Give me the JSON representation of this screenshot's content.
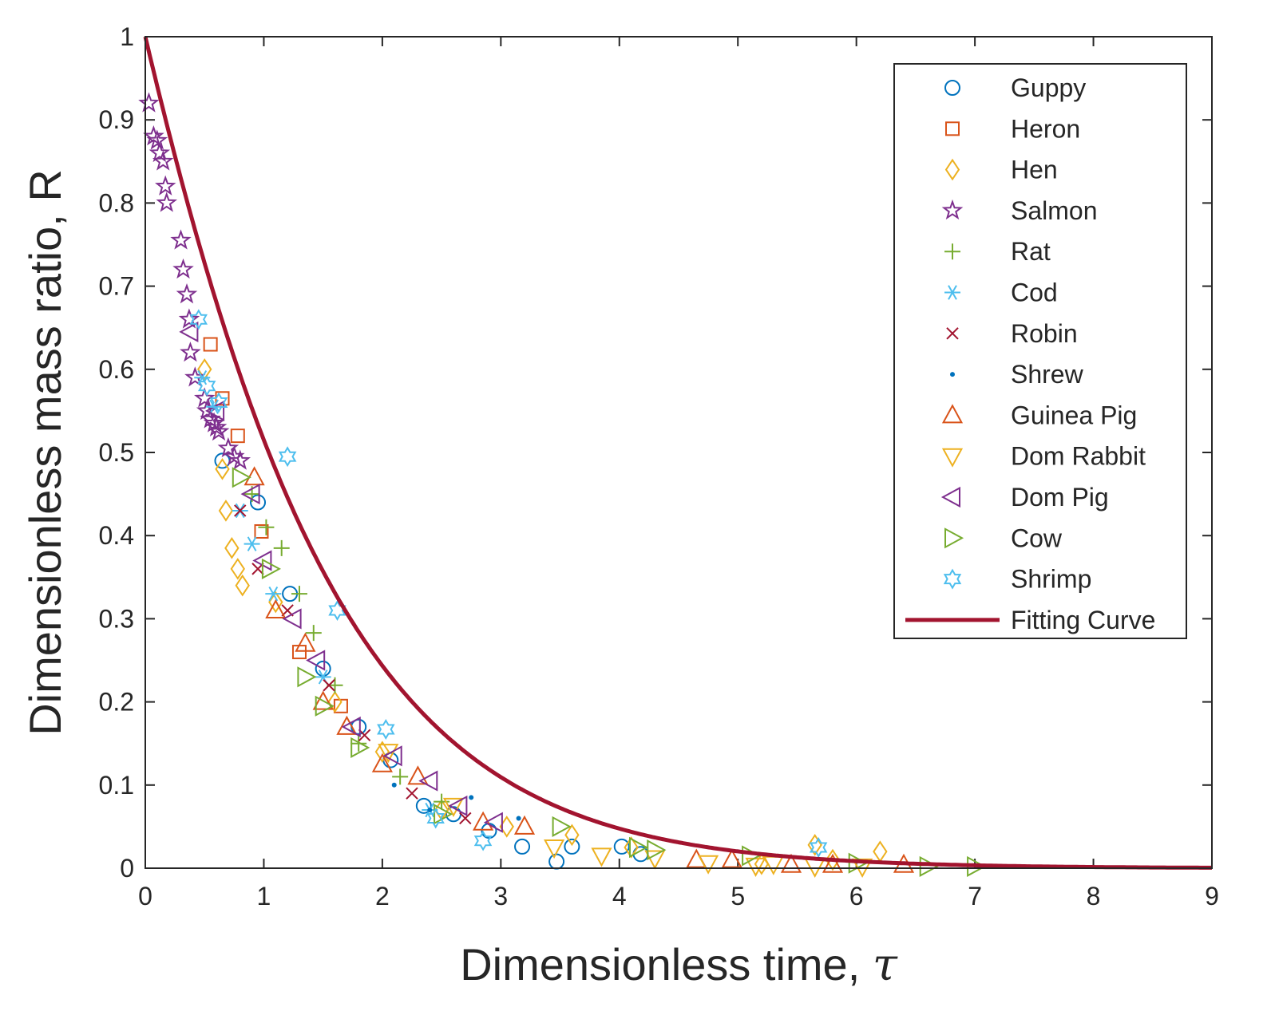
{
  "chart_data": {
    "type": "scatter",
    "title": "",
    "xlabel": "Dimensionless time, ",
    "xlabel_symbol": "τ",
    "ylabel": "Dimensionless mass ratio, R",
    "xlim": [
      0,
      9
    ],
    "ylim": [
      0,
      1
    ],
    "x_ticks": [
      0,
      1,
      2,
      3,
      4,
      5,
      6,
      7,
      8,
      9
    ],
    "y_ticks": [
      0,
      0.1,
      0.2,
      0.3,
      0.4,
      0.5,
      0.6,
      0.7,
      0.8,
      0.9,
      1
    ],
    "y_tick_labels": [
      "0",
      "0.1",
      "0.2",
      "0.3",
      "0.4",
      "0.5",
      "0.6",
      "0.7",
      "0.8",
      "0.9",
      "1"
    ],
    "x_tick_labels": [
      "0",
      "1",
      "2",
      "3",
      "4",
      "5",
      "6",
      "7",
      "8",
      "9"
    ],
    "grid": false,
    "legend_position": "top-right",
    "series": [
      {
        "name": "Guppy",
        "marker": "circle",
        "color": "#0072BD",
        "points": [
          [
            0.65,
            0.49
          ],
          [
            0.95,
            0.44
          ],
          [
            1.22,
            0.33
          ],
          [
            1.5,
            0.24
          ],
          [
            1.8,
            0.17
          ],
          [
            2.07,
            0.13
          ],
          [
            2.35,
            0.075
          ],
          [
            2.6,
            0.065
          ],
          [
            2.9,
            0.045
          ],
          [
            3.18,
            0.026
          ],
          [
            3.47,
            0.008
          ],
          [
            3.6,
            0.026
          ],
          [
            4.02,
            0.026
          ],
          [
            4.18,
            0.017
          ]
        ]
      },
      {
        "name": "Heron",
        "marker": "square",
        "color": "#D95319",
        "points": [
          [
            0.55,
            0.63
          ],
          [
            0.65,
            0.565
          ],
          [
            0.78,
            0.52
          ],
          [
            0.98,
            0.405
          ],
          [
            1.3,
            0.26
          ],
          [
            1.65,
            0.195
          ]
        ]
      },
      {
        "name": "Hen",
        "marker": "diamond",
        "color": "#EDB120",
        "points": [
          [
            0.5,
            0.6
          ],
          [
            0.65,
            0.48
          ],
          [
            0.68,
            0.43
          ],
          [
            0.73,
            0.385
          ],
          [
            0.78,
            0.36
          ],
          [
            0.82,
            0.34
          ],
          [
            1.1,
            0.32
          ],
          [
            1.6,
            0.2
          ],
          [
            2.0,
            0.14
          ],
          [
            2.5,
            0.07
          ],
          [
            3.05,
            0.05
          ],
          [
            3.6,
            0.04
          ],
          [
            4.1,
            0.025
          ],
          [
            5.2,
            0.005
          ],
          [
            5.65,
            0.028
          ],
          [
            5.8,
            0.01
          ],
          [
            6.2,
            0.02
          ]
        ]
      },
      {
        "name": "Salmon",
        "marker": "pentagram",
        "color": "#7E2F8E",
        "points": [
          [
            0.03,
            0.92
          ],
          [
            0.07,
            0.88
          ],
          [
            0.1,
            0.875
          ],
          [
            0.12,
            0.86
          ],
          [
            0.15,
            0.85
          ],
          [
            0.17,
            0.82
          ],
          [
            0.18,
            0.8
          ],
          [
            0.3,
            0.755
          ],
          [
            0.32,
            0.72
          ],
          [
            0.35,
            0.69
          ],
          [
            0.37,
            0.66
          ],
          [
            0.38,
            0.62
          ],
          [
            0.42,
            0.59
          ],
          [
            0.5,
            0.565
          ],
          [
            0.52,
            0.55
          ],
          [
            0.55,
            0.54
          ],
          [
            0.58,
            0.535
          ],
          [
            0.6,
            0.53
          ],
          [
            0.62,
            0.525
          ],
          [
            0.7,
            0.505
          ],
          [
            0.75,
            0.495
          ],
          [
            0.8,
            0.49
          ]
        ]
      },
      {
        "name": "Rat",
        "marker": "plus",
        "color": "#77AC30",
        "points": [
          [
            0.9,
            0.45
          ],
          [
            1.02,
            0.41
          ],
          [
            1.15,
            0.385
          ],
          [
            1.3,
            0.33
          ],
          [
            1.42,
            0.283
          ],
          [
            1.6,
            0.22
          ],
          [
            1.8,
            0.15
          ],
          [
            2.15,
            0.11
          ],
          [
            2.5,
            0.08
          ]
        ]
      },
      {
        "name": "Cod",
        "marker": "asterisk",
        "color": "#4DBEEE",
        "points": [
          [
            0.48,
            0.59
          ],
          [
            0.58,
            0.555
          ],
          [
            0.8,
            0.43
          ],
          [
            0.9,
            0.39
          ],
          [
            1.08,
            0.33
          ],
          [
            1.5,
            0.23
          ],
          [
            2.4,
            0.07
          ]
        ]
      },
      {
        "name": "Robin",
        "marker": "x",
        "color": "#A2142F",
        "points": [
          [
            0.8,
            0.43
          ],
          [
            0.95,
            0.36
          ],
          [
            1.2,
            0.31
          ],
          [
            1.55,
            0.22
          ],
          [
            1.85,
            0.16
          ],
          [
            2.25,
            0.09
          ],
          [
            2.7,
            0.06
          ]
        ]
      },
      {
        "name": "Shrew",
        "marker": "point",
        "color": "#0072BD",
        "points": [
          [
            2.1,
            0.1
          ],
          [
            2.4,
            0.07
          ],
          [
            2.75,
            0.085
          ],
          [
            3.15,
            0.06
          ]
        ]
      },
      {
        "name": "Guinea Pig",
        "marker": "triangle-up",
        "color": "#D95319",
        "points": [
          [
            0.92,
            0.47
          ],
          [
            1.1,
            0.31
          ],
          [
            1.35,
            0.27
          ],
          [
            1.5,
            0.2
          ],
          [
            1.7,
            0.17
          ],
          [
            2.0,
            0.125
          ],
          [
            2.3,
            0.11
          ],
          [
            2.85,
            0.055
          ],
          [
            3.2,
            0.05
          ],
          [
            4.65,
            0.01
          ],
          [
            4.95,
            0.01
          ],
          [
            5.45,
            0.004
          ],
          [
            5.8,
            0.004
          ],
          [
            6.4,
            0.004
          ]
        ]
      },
      {
        "name": "Dom Rabbit",
        "marker": "triangle-down",
        "color": "#EDB120",
        "points": [
          [
            2.05,
            0.14
          ],
          [
            2.6,
            0.075
          ],
          [
            3.45,
            0.025
          ],
          [
            3.85,
            0.015
          ],
          [
            4.3,
            0.012
          ],
          [
            4.75,
            0.006
          ],
          [
            5.15,
            0.003
          ],
          [
            5.3,
            0.005
          ],
          [
            5.65,
            0.002
          ],
          [
            6.05,
            0.002
          ]
        ]
      },
      {
        "name": "Dom Pig",
        "marker": "triangle-left",
        "color": "#7E2F8E",
        "points": [
          [
            0.38,
            0.645
          ],
          [
            0.6,
            0.55
          ],
          [
            0.9,
            0.45
          ],
          [
            1.0,
            0.37
          ],
          [
            1.25,
            0.3
          ],
          [
            1.45,
            0.25
          ],
          [
            1.75,
            0.17
          ],
          [
            2.1,
            0.135
          ],
          [
            2.4,
            0.105
          ],
          [
            2.65,
            0.075
          ],
          [
            2.95,
            0.055
          ]
        ]
      },
      {
        "name": "Cow",
        "marker": "triangle-right",
        "color": "#77AC30",
        "points": [
          [
            0.8,
            0.47
          ],
          [
            1.05,
            0.36
          ],
          [
            1.35,
            0.23
          ],
          [
            1.5,
            0.195
          ],
          [
            1.8,
            0.145
          ],
          [
            2.5,
            0.065
          ],
          [
            3.5,
            0.05
          ],
          [
            4.15,
            0.025
          ],
          [
            4.3,
            0.022
          ],
          [
            5.1,
            0.015
          ],
          [
            6.0,
            0.006
          ],
          [
            6.6,
            0.002
          ],
          [
            7.0,
            0.002
          ]
        ]
      },
      {
        "name": "Shrimp",
        "marker": "hexagram",
        "color": "#4DBEEE",
        "points": [
          [
            0.45,
            0.66
          ],
          [
            0.52,
            0.58
          ],
          [
            0.62,
            0.56
          ],
          [
            1.2,
            0.495
          ],
          [
            1.62,
            0.31
          ],
          [
            2.03,
            0.167
          ],
          [
            2.45,
            0.06
          ],
          [
            2.85,
            0.033
          ],
          [
            5.68,
            0.025
          ]
        ]
      },
      {
        "name": "Fitting Curve",
        "marker": "line",
        "color": "#A2142F",
        "model": "R = (1 + 0.4 τ) exp(-τ)"
      }
    ]
  }
}
